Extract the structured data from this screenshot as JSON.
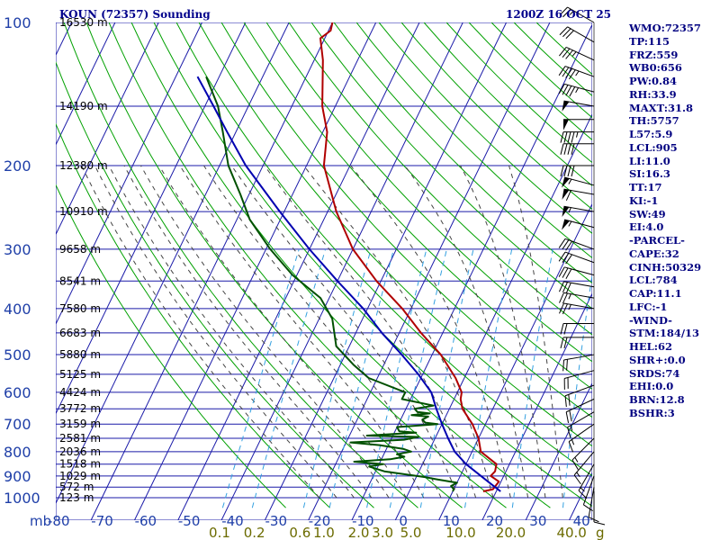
{
  "title": {
    "station": "KOUN (72357) Sounding",
    "time": "1200Z 16 OCT 25"
  },
  "chart_data": {
    "type": "line",
    "description_axes": "skew-T log-P",
    "pressure_ticks": [
      100,
      200,
      300,
      400,
      500,
      600,
      700,
      800,
      900,
      1000
    ],
    "temp_ticks": [
      -80,
      -70,
      -60,
      -50,
      -40,
      -30,
      -20,
      -10,
      0,
      10,
      20,
      30,
      40
    ],
    "pressure_unit": "mb",
    "mixing_ratio_labels": [
      {
        "text": "0.1",
        "t": -45
      },
      {
        "text": "0.2",
        "t": -37
      },
      {
        "text": "0.6",
        "t": -26.5
      },
      {
        "text": "1.0",
        "t": -21
      },
      {
        "text": "2.0",
        "t": -13
      },
      {
        "text": "3.0",
        "t": -7.5
      },
      {
        "text": "5.0",
        "t": -1
      },
      {
        "text": "10.0",
        "t": 9.5
      },
      {
        "text": "20.0",
        "t": 21
      },
      {
        "text": "40.0",
        "t": 35
      }
    ],
    "mixing_unit": "g",
    "heights": [
      {
        "p": 100,
        "text": "16530 m"
      },
      {
        "p": 150,
        "text": "14190 m"
      },
      {
        "p": 200,
        "text": "12380 m"
      },
      {
        "p": 250,
        "text": "10910 m"
      },
      {
        "p": 300,
        "text": "9658 m"
      },
      {
        "p": 350,
        "text": "8541 m"
      },
      {
        "p": 400,
        "text": "7580 m"
      },
      {
        "p": 450,
        "text": "6683 m"
      },
      {
        "p": 500,
        "text": "5880 m"
      },
      {
        "p": 550,
        "text": "5125 m"
      },
      {
        "p": 600,
        "text": "4424 m"
      },
      {
        "p": 650,
        "text": "3772 m"
      },
      {
        "p": 700,
        "text": "3159 m"
      },
      {
        "p": 750,
        "text": "2581 m"
      },
      {
        "p": 800,
        "text": "2036 m"
      },
      {
        "p": 850,
        "text": "1518 m"
      },
      {
        "p": 900,
        "text": "1029 m"
      },
      {
        "p": 950,
        "text": "572 m"
      },
      {
        "p": 1000,
        "text": "123 m"
      }
    ],
    "series": [
      {
        "key": "temperature",
        "color": "#b00000",
        "points": [
          [
            970,
            17
          ],
          [
            960,
            19
          ],
          [
            925,
            19.5
          ],
          [
            900,
            17
          ],
          [
            880,
            17.5
          ],
          [
            850,
            17
          ],
          [
            800,
            12
          ],
          [
            750,
            10
          ],
          [
            700,
            7
          ],
          [
            650,
            3
          ],
          [
            620,
            1.5
          ],
          [
            600,
            1
          ],
          [
            560,
            -2
          ],
          [
            500,
            -8
          ],
          [
            450,
            -15
          ],
          [
            400,
            -22
          ],
          [
            350,
            -31
          ],
          [
            300,
            -40
          ],
          [
            250,
            -48
          ],
          [
            200,
            -56
          ],
          [
            170,
            -59
          ],
          [
            150,
            -63
          ],
          [
            120,
            -68
          ],
          [
            108,
            -71
          ],
          [
            104,
            -69.5
          ],
          [
            100,
            -70
          ]
        ]
      },
      {
        "key": "dewpoint",
        "color": "#005000",
        "points": [
          [
            970,
            10
          ],
          [
            960,
            10
          ],
          [
            945,
            9
          ],
          [
            930,
            10
          ],
          [
            915,
            5
          ],
          [
            905,
            2
          ],
          [
            880,
            -8
          ],
          [
            860,
            -12
          ],
          [
            850,
            -9
          ],
          [
            840,
            -16
          ],
          [
            830,
            -8
          ],
          [
            820,
            -5
          ],
          [
            810,
            -7
          ],
          [
            800,
            -4
          ],
          [
            790,
            -6
          ],
          [
            775,
            -12
          ],
          [
            765,
            -19
          ],
          [
            755,
            -7
          ],
          [
            745,
            -4
          ],
          [
            740,
            -16
          ],
          [
            730,
            -5
          ],
          [
            725,
            -9
          ],
          [
            710,
            -10
          ],
          [
            705,
            -5
          ],
          [
            700,
            -1
          ],
          [
            695,
            -4
          ],
          [
            685,
            -5
          ],
          [
            675,
            -4
          ],
          [
            670,
            -8
          ],
          [
            665,
            -4
          ],
          [
            660,
            -7
          ],
          [
            650,
            -8
          ],
          [
            640,
            -4
          ],
          [
            620,
            -12
          ],
          [
            600,
            -12
          ],
          [
            560,
            -22
          ],
          [
            525,
            -27
          ],
          [
            480,
            -33
          ],
          [
            420,
            -37
          ],
          [
            380,
            -42
          ],
          [
            340,
            -51
          ],
          [
            300,
            -59
          ],
          [
            260,
            -67
          ],
          [
            230,
            -72
          ],
          [
            200,
            -78
          ],
          [
            170,
            -83
          ],
          [
            150,
            -87
          ],
          [
            130,
            -93
          ]
        ]
      },
      {
        "key": "parcel",
        "color": "#0000b0",
        "points": [
          [
            970,
            21
          ],
          [
            925,
            17
          ],
          [
            850,
            10
          ],
          [
            800,
            6
          ],
          [
            750,
            3
          ],
          [
            700,
            0
          ],
          [
            650,
            -3
          ],
          [
            600,
            -6
          ],
          [
            550,
            -11
          ],
          [
            500,
            -17
          ],
          [
            450,
            -24
          ],
          [
            400,
            -31
          ],
          [
            350,
            -40
          ],
          [
            300,
            -50
          ],
          [
            250,
            -61
          ],
          [
            200,
            -74
          ],
          [
            170,
            -82
          ],
          [
            150,
            -88
          ],
          [
            130,
            -95
          ]
        ]
      }
    ],
    "wind_barbs": [
      {
        "p": 100,
        "dir": 300,
        "spd": 25
      },
      {
        "p": 110,
        "dir": 300,
        "spd": 30
      },
      {
        "p": 120,
        "dir": 295,
        "spd": 35
      },
      {
        "p": 130,
        "dir": 290,
        "spd": 45
      },
      {
        "p": 140,
        "dir": 285,
        "spd": 45
      },
      {
        "p": 150,
        "dir": 280,
        "spd": 50
      },
      {
        "p": 160,
        "dir": 270,
        "spd": 50
      },
      {
        "p": 170,
        "dir": 270,
        "spd": 45
      },
      {
        "p": 180,
        "dir": 270,
        "spd": 40
      },
      {
        "p": 200,
        "dir": 270,
        "spd": 40
      },
      {
        "p": 220,
        "dir": 285,
        "spd": 55
      },
      {
        "p": 230,
        "dir": 280,
        "spd": 60
      },
      {
        "p": 250,
        "dir": 280,
        "spd": 55
      },
      {
        "p": 270,
        "dir": 285,
        "spd": 55
      },
      {
        "p": 300,
        "dir": 290,
        "spd": 30
      },
      {
        "p": 320,
        "dir": 290,
        "spd": 30
      },
      {
        "p": 340,
        "dir": 285,
        "spd": 30
      },
      {
        "p": 360,
        "dir": 280,
        "spd": 30
      },
      {
        "p": 380,
        "dir": 280,
        "spd": 25
      },
      {
        "p": 400,
        "dir": 280,
        "spd": 25
      },
      {
        "p": 430,
        "dir": 270,
        "spd": 20
      },
      {
        "p": 460,
        "dir": 270,
        "spd": 20
      },
      {
        "p": 500,
        "dir": 260,
        "spd": 20
      },
      {
        "p": 540,
        "dir": 255,
        "spd": 20
      },
      {
        "p": 580,
        "dir": 250,
        "spd": 20
      },
      {
        "p": 620,
        "dir": 245,
        "spd": 20
      },
      {
        "p": 660,
        "dir": 240,
        "spd": 15
      },
      {
        "p": 700,
        "dir": 235,
        "spd": 15
      },
      {
        "p": 750,
        "dir": 225,
        "spd": 15
      },
      {
        "p": 800,
        "dir": 220,
        "spd": 15
      },
      {
        "p": 850,
        "dir": 210,
        "spd": 15
      },
      {
        "p": 900,
        "dir": 200,
        "spd": 10
      },
      {
        "p": 950,
        "dir": 190,
        "spd": 10
      },
      {
        "p": 970,
        "dir": 180,
        "spd": 10
      }
    ]
  },
  "indices": [
    "WMO:72357",
    "TP:115",
    "FRZ:559",
    "WB0:656",
    "PW:0.84",
    "RH:33.9",
    "MAXT:31.8",
    "TH:5757",
    "L57:5.9",
    "LCL:905",
    "LI:11.0",
    "SI:16.3",
    "TT:17",
    "KI:-1",
    "SW:49",
    "EI:4.0",
    "-PARCEL-",
    "CAPE:32",
    "CINH:50329",
    "LCL:784",
    "CAP:11.1",
    "LFC:-1",
    "-WIND-",
    "STM:184/13",
    "HEL:62",
    "SHR+:0.0",
    "SRDS:74",
    "EHI:0.0",
    "BRN:12.8",
    "BSHR:3"
  ],
  "colors": {
    "grid": "#1a1aa8",
    "dry_adiabat": "#00a000",
    "moist_adiabat": "#444444",
    "mixing_ratio": "#33a0e0"
  }
}
